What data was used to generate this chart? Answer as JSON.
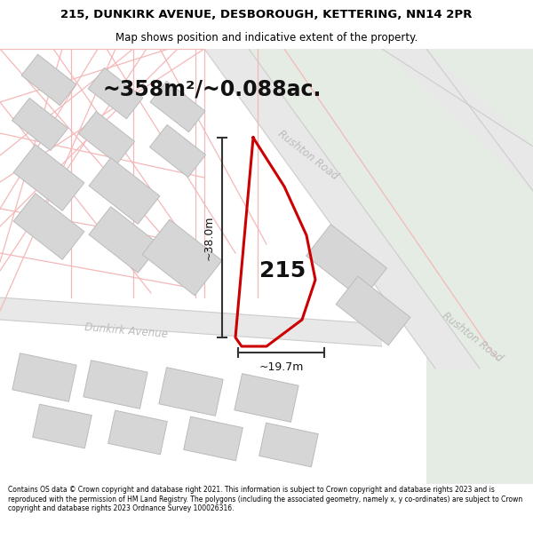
{
  "title_line1": "215, DUNKIRK AVENUE, DESBOROUGH, KETTERING, NN14 2PR",
  "title_line2": "Map shows position and indicative extent of the property.",
  "area_text": "~358m²/~0.088ac.",
  "label_215": "215",
  "dim_height_label": "~38.0m",
  "dim_width_label": "~19.7m",
  "road_label_upper": "Rushton Road",
  "road_label_lower": "Rushton Road",
  "road_label_dunkirk": "Dunkirk Avenue",
  "footer": "Contains OS data © Crown copyright and database right 2021. This information is subject to Crown copyright and database rights 2023 and is reproduced with the permission of HM Land Registry. The polygons (including the associated geometry, namely x, y co-ordinates) are subject to Crown copyright and database rights 2023 Ordnance Survey 100026316.",
  "bg_color": "#f2f2f2",
  "map_bg": "#ffffff",
  "green_color": "#e4ece4",
  "road_band_color": "#e8e8e8",
  "road_border_color": "#cccccc",
  "property_color": "#cc0000",
  "dim_color": "#333333",
  "road_text_color": "#bbbbbb",
  "building_fill": "#d6d6d6",
  "building_edge": "#bbbbbb",
  "street_line_color": "#f5b8b8",
  "title_fontsize": 9.5,
  "subtitle_fontsize": 8.5,
  "area_fontsize": 17,
  "label_fontsize": 18,
  "dim_fontsize": 9,
  "road_fontsize": 8.5,
  "footer_fontsize": 5.5
}
